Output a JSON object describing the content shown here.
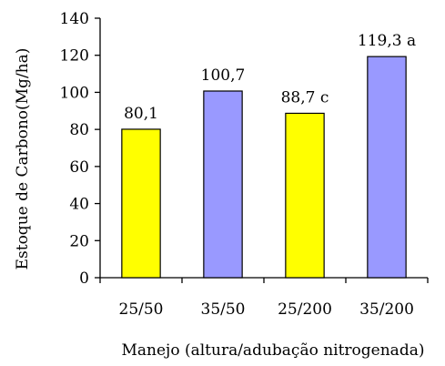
{
  "chart_data": {
    "type": "bar",
    "title": "",
    "xlabel": "Manejo (altura/adubação nitrogenada)",
    "ylabel": "Estoque de Carbono(Mg/ha)",
    "ylim": [
      0,
      140
    ],
    "yticks": [
      0,
      20,
      40,
      60,
      80,
      100,
      120,
      140
    ],
    "ytick_labels": [
      "0",
      "20",
      "40",
      "60",
      "80",
      "100",
      "120",
      "140"
    ],
    "categories": [
      "25/50",
      "35/50",
      "25/200",
      "35/200"
    ],
    "values": [
      80.1,
      100.7,
      88.7,
      119.3
    ],
    "data_labels": [
      "80,1",
      "100,7",
      "88,7 c",
      "119,3 a"
    ],
    "bar_colors": [
      "#ffff00",
      "#9999ff",
      "#ffff00",
      "#9999ff"
    ],
    "bar_edge_color": "#000000",
    "grid": false,
    "legend": "none"
  }
}
